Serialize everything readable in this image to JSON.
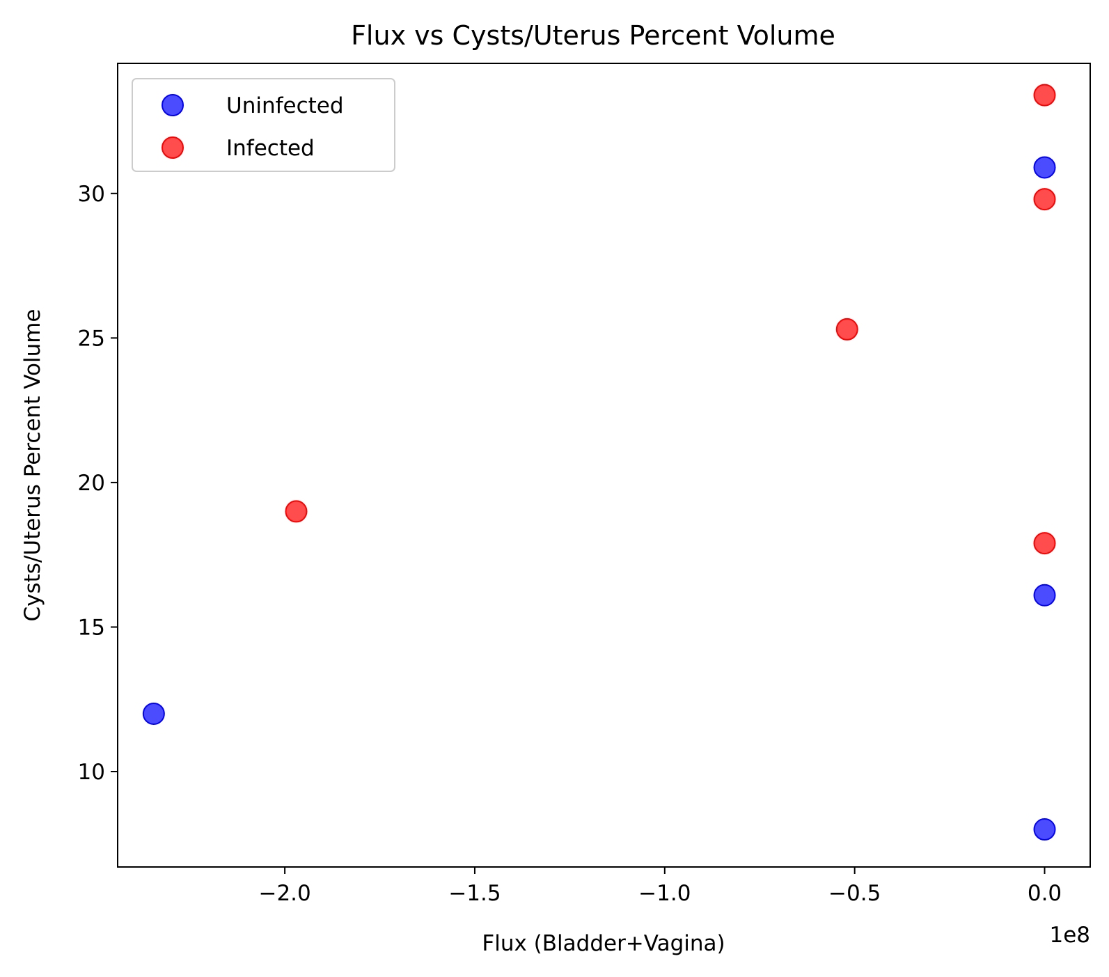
{
  "chart_data": {
    "type": "scatter",
    "title": "Flux vs Cysts/Uterus Percent Volume",
    "xlabel": "Flux (Bladder+Vagina)",
    "ylabel": "Cysts/Uterus Percent Volume",
    "x_offset_label": "1e8",
    "xlim": [
      -2.44,
      0.12
    ],
    "ylim": [
      6.7,
      34.5
    ],
    "x_ticks": [
      -2.0,
      -1.5,
      -1.0,
      -0.5,
      0.0
    ],
    "x_tick_labels": [
      "−2.0",
      "−1.5",
      "−1.0",
      "−0.5",
      "0.0"
    ],
    "y_ticks": [
      10,
      15,
      20,
      25,
      30
    ],
    "y_tick_labels": [
      "10",
      "15",
      "20",
      "25",
      "30"
    ],
    "grid": false,
    "legend_position": "top-left",
    "series": [
      {
        "name": "Uninfected",
        "color": "#0000ff",
        "x": [
          -2.345,
          0.0,
          0.0,
          0.0
        ],
        "y": [
          12.0,
          30.9,
          16.1,
          8.0
        ]
      },
      {
        "name": "Infected",
        "color": "#ff0000",
        "x": [
          -1.97,
          -0.52,
          0.0,
          0.0,
          0.0
        ],
        "y": [
          19.0,
          25.3,
          33.4,
          29.8,
          17.9
        ]
      }
    ]
  }
}
